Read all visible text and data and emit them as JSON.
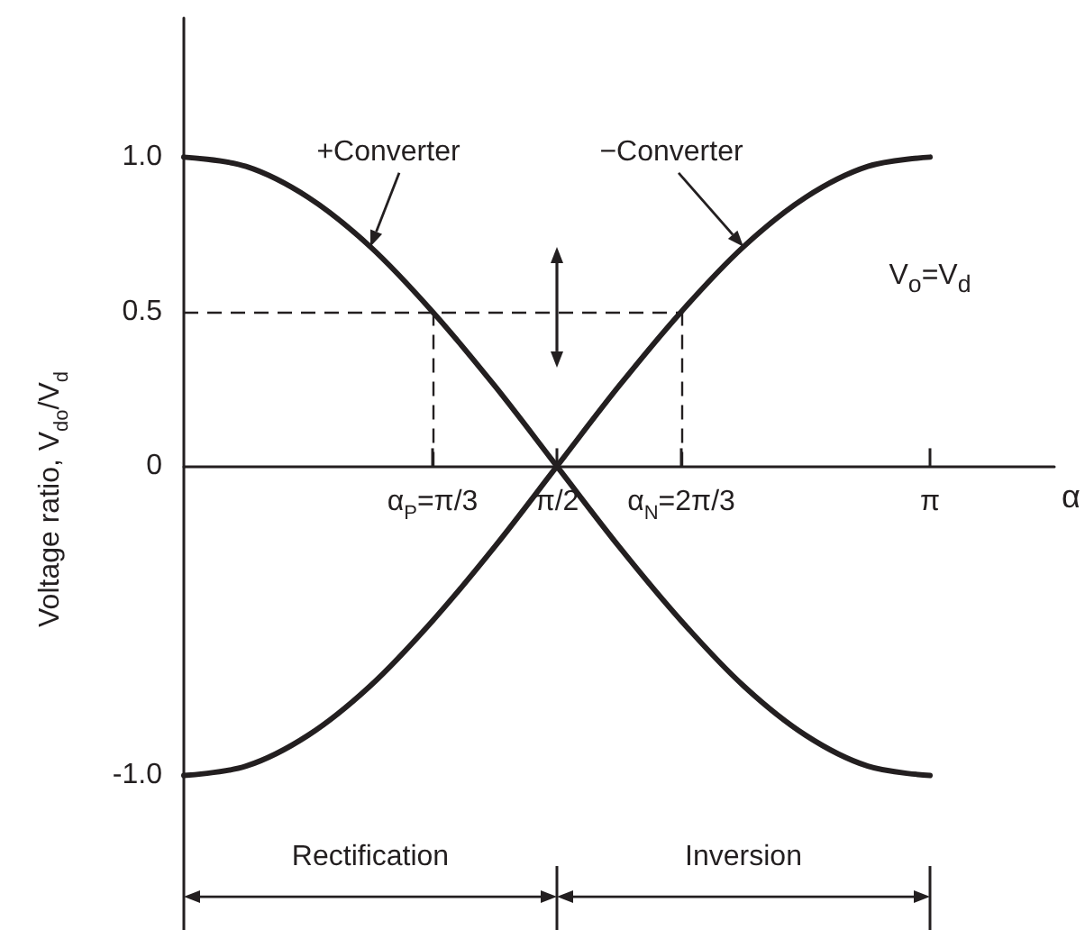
{
  "chart_data": {
    "type": "line",
    "categories": [
      null,
      null,
      null,
      null,
      "α$_{P}$=π/3",
      null,
      "π/2",
      null,
      "α$_{N}$=2π/3",
      null,
      null,
      null,
      "π",
      null,
      null
    ],
    "series": [
      {
        "name": "+Converter",
        "color": "#231f20",
        "values": [
          1.0,
          0.97,
          0.87,
          0.71,
          0.5,
          0.26,
          0,
          -0.26,
          -0.5,
          -0.71,
          -0.87,
          -0.97,
          -1.0,
          null,
          null
        ]
      },
      {
        "name": "−Converter",
        "color": "#231f20",
        "values": [
          -1.0,
          -0.97,
          -0.87,
          -0.71,
          -0.5,
          -0.26,
          0,
          0.26,
          0.5,
          0.71,
          0.87,
          0.97,
          1.0,
          null,
          null
        ]
      }
    ],
    "xlabel": "α",
    "ylabel": "Voltage ratio, V$_{do}$/V$_{d}$",
    "ylim": [
      -1.5,
      1.45
    ],
    "yticks": [
      {
        "value": -1,
        "label": "-1.0"
      },
      0,
      {
        "value": 0.5,
        "label": "0.5"
      },
      {
        "value": 1,
        "label": "1.0"
      }
    ],
    "ref_lines": [
      {
        "axis": "y",
        "value": 0.5,
        "line_style": "dashed",
        "color": "#231f20"
      },
      {
        "axis": "x",
        "value": "α$_{P}$=π/3",
        "line_style": "dashed",
        "color": "#231f20"
      },
      {
        "axis": "x",
        "value": "α$_{N}$=2π/3",
        "line_style": "dashed",
        "color": "#231f20"
      }
    ],
    "annotations": [
      "V$_{o}$=V$_{d}$",
      "Rectification",
      "Inversion"
    ]
  }
}
